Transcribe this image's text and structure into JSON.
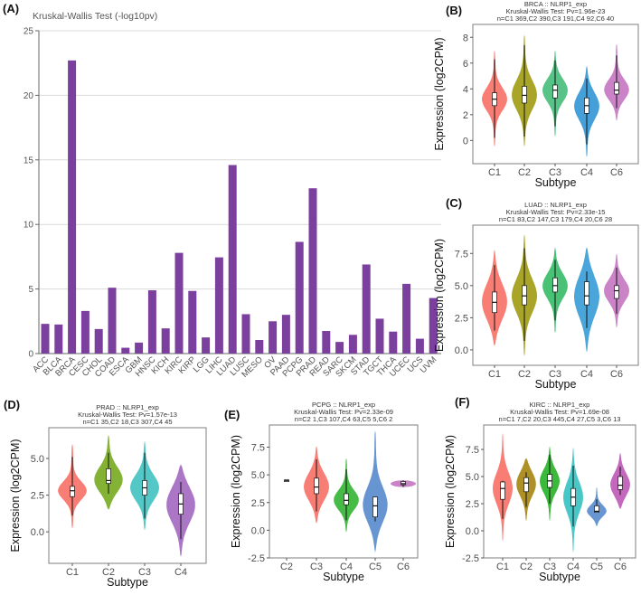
{
  "chart_data": [
    {
      "panel": "(A)",
      "type": "bar",
      "title": "Kruskal-Wallis Test (-log10pv)",
      "xlabel": "",
      "ylabel": "",
      "ylim": [
        0,
        25
      ],
      "yticks": [
        0,
        5,
        10,
        15,
        20,
        25
      ],
      "grid": true,
      "color": "#7b3f9e",
      "categories": [
        "ACC",
        "BLCA",
        "BRCA",
        "CESC",
        "CHOL",
        "COAD",
        "ESCA",
        "GBM",
        "HNSC",
        "KICH",
        "KIRC",
        "KIRP",
        "LGG",
        "LIHC",
        "LUAD",
        "LUSC",
        "MESO",
        "OV",
        "PAAD",
        "PCPG",
        "PRAD",
        "READ",
        "SARC",
        "SKCM",
        "STAD",
        "TGCT",
        "THCA",
        "UCEC",
        "UCS",
        "UVM"
      ],
      "values": [
        2.3,
        2.25,
        22.7,
        3.3,
        1.9,
        5.1,
        0.45,
        0.85,
        4.9,
        1.95,
        7.8,
        4.85,
        1.25,
        7.45,
        14.6,
        3.05,
        1.05,
        2.5,
        3.0,
        8.65,
        12.8,
        1.75,
        0.9,
        1.45,
        6.9,
        2.7,
        1.7,
        5.4,
        1.15,
        4.3
      ]
    },
    {
      "panel": "(B)",
      "type": "violin",
      "title_lines": [
        "BRCA :: NLRP1_exp",
        "Kruskal-Wallis Test: Pv=1.96e-23",
        "n=C1 369,C2 390,C3 191,C4 92,C6 40"
      ],
      "xlabel": "Subtype",
      "ylabel": "Expression (log2CPM)",
      "ylim": [
        -1.8,
        9.0
      ],
      "yticks": [
        0,
        2,
        4,
        6,
        8
      ],
      "ytick_labels": [
        "0",
        "2",
        "4",
        "6",
        "8"
      ],
      "groups": [
        {
          "name": "C1",
          "color": "#f8766d",
          "min": -0.5,
          "max": 7.0,
          "q1": 2.7,
          "median": 3.2,
          "q3": 3.7,
          "whisker_low": 0.2,
          "whisker_high": 6.3
        },
        {
          "name": "C2",
          "color": "#a3a01c",
          "min": -0.5,
          "max": 8.2,
          "q1": 2.9,
          "median": 3.5,
          "q3": 4.2,
          "whisker_low": 0.3,
          "whisker_high": 7.4
        },
        {
          "name": "C3",
          "color": "#4fc07f",
          "min": 0.3,
          "max": 7.0,
          "q1": 3.3,
          "median": 3.9,
          "q3": 4.3,
          "whisker_low": 1.1,
          "whisker_high": 6.2
        },
        {
          "name": "C4",
          "color": "#3b9ad6",
          "min": -1.3,
          "max": 5.8,
          "q1": 2.1,
          "median": 2.7,
          "q3": 3.3,
          "whisker_low": -0.3,
          "whisker_high": 4.8
        },
        {
          "name": "C6",
          "color": "#c77cc4",
          "min": 1.5,
          "max": 7.5,
          "q1": 3.6,
          "median": 3.9,
          "q3": 4.5,
          "whisker_low": 2.5,
          "whisker_high": 6.6
        }
      ]
    },
    {
      "panel": "(C)",
      "type": "violin",
      "title_lines": [
        "LUAD :: NLRP1_exp",
        "Kruskal-Wallis Test: Pv=2.33e-15",
        "n=C1 83,C2 147,C3 179,C4 20,C6 28"
      ],
      "xlabel": "Subtype",
      "ylabel": "Expression (log2CPM)",
      "ylim": [
        -1.2,
        9.7
      ],
      "yticks": [
        0,
        2.5,
        5,
        7.5
      ],
      "ytick_labels": [
        "0.0",
        "2.5",
        "5.0",
        "7.5"
      ],
      "groups": [
        {
          "name": "C1",
          "color": "#f8766d",
          "min": 0.3,
          "max": 7.8,
          "q1": 2.9,
          "median": 3.7,
          "q3": 4.5,
          "whisker_low": 1.5,
          "whisker_high": 6.6
        },
        {
          "name": "C2",
          "color": "#a3a01c",
          "min": -0.5,
          "max": 9.0,
          "q1": 3.5,
          "median": 4.2,
          "q3": 5.0,
          "whisker_low": 0.7,
          "whisker_high": 7.9
        },
        {
          "name": "C3",
          "color": "#3fbf6e",
          "min": 1.3,
          "max": 8.0,
          "q1": 4.5,
          "median": 5.0,
          "q3": 5.6,
          "whisker_low": 2.3,
          "whisker_high": 7.0
        },
        {
          "name": "C4",
          "color": "#3fa0d8",
          "min": -0.2,
          "max": 8.0,
          "q1": 3.5,
          "median": 4.2,
          "q3": 5.3,
          "whisker_low": 1.7,
          "whisker_high": 6.1
        },
        {
          "name": "C6",
          "color": "#c77cc4",
          "min": 1.7,
          "max": 7.5,
          "q1": 4.0,
          "median": 4.6,
          "q3": 5.0,
          "whisker_low": 2.8,
          "whisker_high": 6.4
        }
      ]
    },
    {
      "panel": "(D)",
      "type": "violin",
      "title_lines": [
        "PRAD :: NLRP1_exp",
        "Kruskal-Wallis Test: Pv=1.57e-13",
        "n=C1 35,C2 18,C3 307,C4 45"
      ],
      "xlabel": "Subtype",
      "ylabel": "Expression (log2CPM)",
      "ylim": [
        -2.15,
        7.1
      ],
      "yticks": [
        0,
        2.5,
        5
      ],
      "ytick_labels": [
        "0.0",
        "2.5",
        "5.0"
      ],
      "groups": [
        {
          "name": "C1",
          "color": "#f8766d",
          "min": 0.2,
          "max": 6.0,
          "q1": 2.4,
          "median": 2.8,
          "q3": 3.1,
          "whisker_low": 1.1,
          "whisker_high": 5.1
        },
        {
          "name": "C2",
          "color": "#7cae2a",
          "min": 1.5,
          "max": 6.6,
          "q1": 3.3,
          "median": 3.5,
          "q3": 4.3,
          "whisker_low": 2.6,
          "whisker_high": 5.4
        },
        {
          "name": "C3",
          "color": "#4bc4c4",
          "min": 0.1,
          "max": 6.2,
          "q1": 2.5,
          "median": 3.0,
          "q3": 3.5,
          "whisker_low": 0.9,
          "whisker_high": 5.4
        },
        {
          "name": "C4",
          "color": "#a86fc4",
          "min": -1.7,
          "max": 4.6,
          "q1": 1.2,
          "median": 1.9,
          "q3": 2.6,
          "whisker_low": -0.5,
          "whisker_high": 3.4
        }
      ]
    },
    {
      "panel": "(E)",
      "type": "violin",
      "title_lines": [
        "PCPG :: NLRP1_exp",
        "Kruskal-Wallis Test: Pv=2.33e-09",
        "n=C2 1,C3 107,C4 63,C5 5,C6 2"
      ],
      "xlabel": "Subtype",
      "ylabel": "Expression (log2CPM)",
      "ylim": [
        -2.5,
        9.5
      ],
      "yticks": [
        -2.5,
        0,
        2.5,
        5,
        7.5
      ],
      "ytick_labels": [
        "-2.5",
        "0.0",
        "2.5",
        "5.0",
        "7.5"
      ],
      "groups": [
        {
          "name": "C2",
          "color": "#b0a020",
          "min": 4.45,
          "max": 4.55,
          "q1": 4.45,
          "median": 4.5,
          "q3": 4.55,
          "whisker_low": 4.45,
          "whisker_high": 4.55
        },
        {
          "name": "C3",
          "color": "#f8766d",
          "min": 0.6,
          "max": 7.6,
          "q1": 3.3,
          "median": 3.9,
          "q3": 4.7,
          "whisker_low": 1.7,
          "whisker_high": 6.4
        },
        {
          "name": "C4",
          "color": "#3cb83c",
          "min": -0.2,
          "max": 6.5,
          "q1": 2.3,
          "median": 2.7,
          "q3": 3.3,
          "whisker_low": 0.9,
          "whisker_high": 5.5
        },
        {
          "name": "C5",
          "color": "#5f8fd0",
          "min": -2.0,
          "max": 9.0,
          "q1": 1.2,
          "median": 2.2,
          "q3": 3.0,
          "whisker_low": 0.8,
          "whisker_high": 3.0
        },
        {
          "name": "C6",
          "color": "#c77cc4",
          "min": 3.9,
          "max": 4.5,
          "q1": 4.1,
          "median": 4.2,
          "q3": 4.4,
          "whisker_low": 3.9,
          "whisker_high": 4.5
        }
      ]
    },
    {
      "panel": "(F)",
      "type": "violin",
      "title_lines": [
        "KIRC :: NLRP1_exp",
        "Kruskal-Wallis Test: Pv=1.69e-08",
        "n=C1 7,C2 20,C3 445,C4 27,C5 3,C6 13"
      ],
      "xlabel": "Subtype",
      "ylabel": "Expression (log2CPM)",
      "ylim": [
        -2.5,
        9.75
      ],
      "yticks": [
        -2.5,
        0,
        2.5,
        5,
        7.5
      ],
      "ytick_labels": [
        "-2.5",
        "0.0",
        "2.5",
        "5.0",
        "7.5"
      ],
      "groups": [
        {
          "name": "C1",
          "color": "#f8766d",
          "min": -1.0,
          "max": 9.0,
          "q1": 2.9,
          "median": 3.9,
          "q3": 4.5,
          "whisker_low": 1.1,
          "whisker_high": 4.6
        },
        {
          "name": "C2",
          "color": "#a98a1a",
          "min": 0.9,
          "max": 6.7,
          "q1": 3.6,
          "median": 4.4,
          "q3": 4.9,
          "whisker_low": 2.2,
          "whisker_high": 5.4
        },
        {
          "name": "C3",
          "color": "#2fb52f",
          "min": 0.9,
          "max": 7.8,
          "q1": 4.0,
          "median": 4.6,
          "q3": 5.2,
          "whisker_low": 2.5,
          "whisker_high": 7.0
        },
        {
          "name": "C4",
          "color": "#3fc4c4",
          "min": -2.0,
          "max": 7.7,
          "q1": 2.3,
          "median": 3.1,
          "q3": 3.9,
          "whisker_low": 0.4,
          "whisker_high": 6.0
        },
        {
          "name": "C5",
          "color": "#6090d0",
          "min": 0.4,
          "max": 4.0,
          "q1": 1.7,
          "median": 1.8,
          "q3": 2.3,
          "whisker_low": 1.7,
          "whisker_high": 2.9
        },
        {
          "name": "C6",
          "color": "#c060b8",
          "min": 2.0,
          "max": 7.2,
          "q1": 3.8,
          "median": 4.2,
          "q3": 5.0,
          "whisker_low": 3.3,
          "whisker_high": 5.9
        }
      ]
    }
  ]
}
